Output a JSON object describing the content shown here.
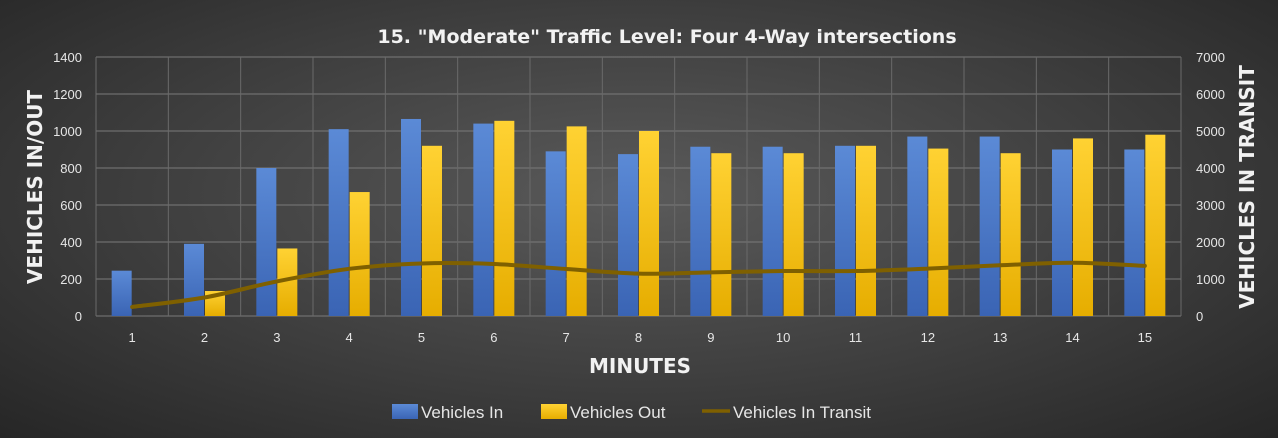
{
  "chart_data": {
    "type": "bar",
    "title": "15. \"Moderate\" Traffic Level: Four 4-Way intersections",
    "xlabel": "MINUTES",
    "ylabel": "VEHICLES IN/OUT",
    "y2label": "VEHICLES IN TRANSIT",
    "categories": [
      "1",
      "2",
      "3",
      "4",
      "5",
      "6",
      "7",
      "8",
      "9",
      "10",
      "11",
      "12",
      "13",
      "14",
      "15"
    ],
    "ylim": [
      0,
      1400
    ],
    "y2lim": [
      0,
      7000
    ],
    "yticks": [
      "0",
      "200",
      "400",
      "600",
      "800",
      "1000",
      "1200",
      "1400"
    ],
    "y2ticks": [
      "0",
      "1000",
      "2000",
      "3000",
      "4000",
      "5000",
      "6000",
      "7000"
    ],
    "grid": true,
    "legend_position": "bottom",
    "series": [
      {
        "name": "Vehicles In",
        "type": "bar",
        "axis": "left",
        "color": "#4472c4",
        "values": [
          245,
          390,
          800,
          1010,
          1065,
          1040,
          890,
          875,
          915,
          915,
          920,
          970,
          970,
          900,
          900
        ]
      },
      {
        "name": "Vehicles Out",
        "type": "bar",
        "axis": "left",
        "color": "#ffc000",
        "values": [
          0,
          135,
          365,
          670,
          920,
          1055,
          1025,
          1000,
          880,
          880,
          920,
          905,
          880,
          960,
          980
        ]
      },
      {
        "name": "Vehicles In Transit",
        "type": "line",
        "axis": "right",
        "color": "#7f6000",
        "values": [
          245,
          500,
          935,
          1275,
          1420,
          1405,
          1270,
          1145,
          1180,
          1215,
          1215,
          1280,
          1370,
          1440,
          1355
        ]
      }
    ]
  }
}
